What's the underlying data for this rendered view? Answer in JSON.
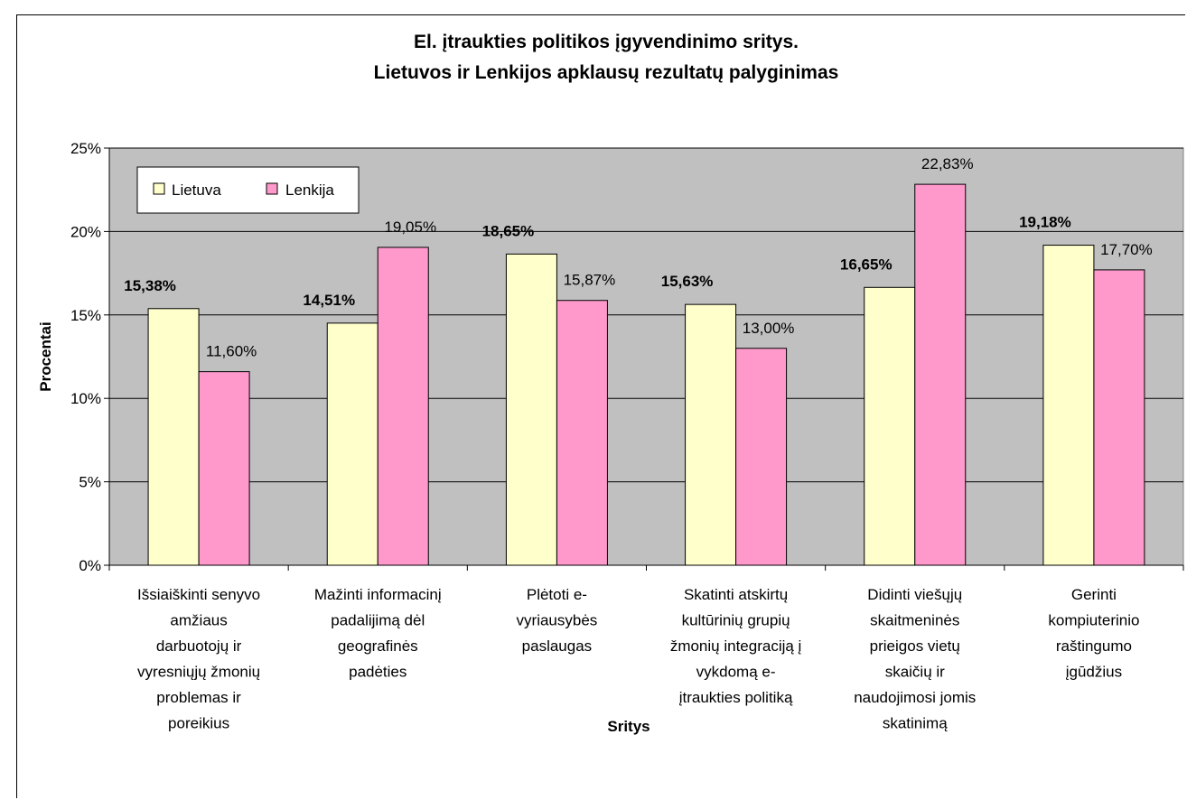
{
  "chart_data": {
    "type": "bar",
    "title_lines": [
      "El. įtraukties politikos įgyvendinimo sritys.",
      "Lietuvos ir Lenkijos apklausų rezultatų palyginimas"
    ],
    "xlabel": "Sritys",
    "ylabel": "Procentai",
    "ylim": [
      0,
      25
    ],
    "yticks": [
      "0%",
      "5%",
      "10%",
      "15%",
      "20%",
      "25%"
    ],
    "categories": [
      [
        "Išsiaiškinti senyvo",
        "amžiaus",
        "darbuotojų ir",
        "vyresniųjų žmonių",
        "problemas ir",
        "poreikius"
      ],
      [
        "Mažinti informacinį",
        "padalijimą dėl",
        "geografinės",
        "padėties"
      ],
      [
        "Plėtoti e-",
        "vyriausybės",
        "paslaugas"
      ],
      [
        "Skatinti atskirtų",
        "kultūrinių grupių",
        "žmonių integraciją į",
        "vykdomą e-",
        "įtraukties politiką"
      ],
      [
        "Didinti viešųjų",
        "skaitmeninės",
        "prieigos vietų",
        "skaičių ir",
        "naudojimosi jomis",
        "skatinimą"
      ],
      [
        "Gerinti",
        "kompiuterinio",
        "raštingumo",
        "įgūdžius"
      ]
    ],
    "series": [
      {
        "name": "Lietuva",
        "color": "#ffffcc",
        "values": [
          15.38,
          14.51,
          18.65,
          15.63,
          16.65,
          19.18
        ],
        "labels": [
          "15,38%",
          "14,51%",
          "18,65%",
          "15,63%",
          "16,65%",
          "19,18%"
        ]
      },
      {
        "name": "Lenkija",
        "color": "#ff99cc",
        "values": [
          11.6,
          19.05,
          15.87,
          13.0,
          22.83,
          17.7
        ],
        "labels": [
          "11,60%",
          "19,05%",
          "15,87%",
          "13,00%",
          "22,83%",
          "17,70%"
        ]
      }
    ],
    "plot_background": "#c0c0c0",
    "grid": true,
    "legend_position": "top-left"
  }
}
